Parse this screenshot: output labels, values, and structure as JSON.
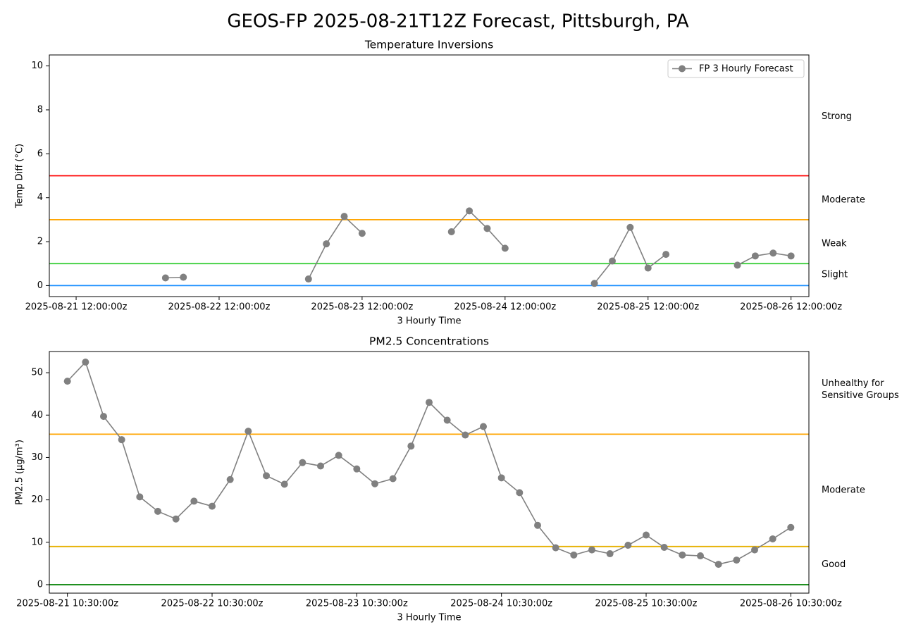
{
  "title": "GEOS-FP 2025-08-21T12Z Forecast, Pittsburgh, PA",
  "chart_data": [
    {
      "type": "line",
      "title": "Temperature Inversions",
      "xlabel": "3 Hourly Time",
      "ylabel": "Temp Diff (°C)",
      "x": [
        "2025-08-22 03:00:00z",
        "2025-08-22 06:00:00z",
        "2025-08-22 09:00:00z",
        "2025-08-23 03:00:00z",
        "2025-08-23 06:00:00z",
        "2025-08-23 09:00:00z",
        "2025-08-23 12:00:00z",
        "2025-08-23 15:00:00z",
        "2025-08-24 03:00:00z",
        "2025-08-24 06:00:00z",
        "2025-08-24 09:00:00z",
        "2025-08-24 12:00:00z",
        "2025-08-24 15:00:00z",
        "2025-08-25 03:00:00z",
        "2025-08-25 06:00:00z",
        "2025-08-25 09:00:00z",
        "2025-08-25 12:00:00z",
        "2025-08-25 15:00:00z",
        "2025-08-25 18:00:00z",
        "2025-08-26 03:00:00z",
        "2025-08-26 06:00:00z",
        "2025-08-26 09:00:00z",
        "2025-08-26 12:00:00z"
      ],
      "series": [
        {
          "name": "FP 3 Hourly Forecast",
          "color": "#808080",
          "values": [
            0.35,
            0.38,
            null,
            0.3,
            1.9,
            3.15,
            2.38,
            null,
            2.45,
            3.4,
            2.6,
            1.7,
            null,
            0.1,
            1.12,
            2.65,
            0.8,
            1.42,
            null,
            0.93,
            1.35,
            1.48,
            1.35
          ]
        }
      ],
      "xlim": [
        "2025-08-21 07:30:00z",
        "2025-08-26 15:00:00z"
      ],
      "xticks": [
        "2025-08-21 12:00:00z",
        "2025-08-22 12:00:00z",
        "2025-08-23 12:00:00z",
        "2025-08-24 12:00:00z",
        "2025-08-25 12:00:00z",
        "2025-08-26 12:00:00z"
      ],
      "ylim": [
        -0.5,
        10.5
      ],
      "yticks": [
        0,
        2,
        4,
        6,
        8,
        10
      ],
      "thresholds": [
        {
          "value": 0,
          "color": "#1e90ff"
        },
        {
          "value": 1,
          "color": "#32cd32"
        },
        {
          "value": 3,
          "color": "#ffa500"
        },
        {
          "value": 5,
          "color": "#ff0000"
        }
      ],
      "zone_labels": [
        {
          "lines": [
            "Strong"
          ],
          "color": "#ff0000",
          "y": 7.7
        },
        {
          "lines": [
            "Moderate"
          ],
          "color": "#ffa500",
          "y": 3.9
        },
        {
          "lines": [
            "Weak"
          ],
          "color": "#32cd32",
          "y": 1.9
        },
        {
          "lines": [
            "Slight"
          ],
          "color": "#1e90ff",
          "y": 0.5
        }
      ],
      "legend": "upper right"
    },
    {
      "type": "line",
      "title": "PM2.5 Concentrations",
      "xlabel": "3 Hourly Time",
      "ylabel": "PM2.5 (μg/m³)",
      "x": [
        "2025-08-21 10:30:00z",
        "2025-08-21 13:30:00z",
        "2025-08-21 16:30:00z",
        "2025-08-21 19:30:00z",
        "2025-08-21 22:30:00z",
        "2025-08-22 01:30:00z",
        "2025-08-22 04:30:00z",
        "2025-08-22 07:30:00z",
        "2025-08-22 10:30:00z",
        "2025-08-22 13:30:00z",
        "2025-08-22 16:30:00z",
        "2025-08-22 19:30:00z",
        "2025-08-22 22:30:00z",
        "2025-08-23 01:30:00z",
        "2025-08-23 04:30:00z",
        "2025-08-23 07:30:00z",
        "2025-08-23 10:30:00z",
        "2025-08-23 13:30:00z",
        "2025-08-23 16:30:00z",
        "2025-08-23 19:30:00z",
        "2025-08-23 22:30:00z",
        "2025-08-24 01:30:00z",
        "2025-08-24 04:30:00z",
        "2025-08-24 07:30:00z",
        "2025-08-24 10:30:00z",
        "2025-08-24 13:30:00z",
        "2025-08-24 16:30:00z",
        "2025-08-24 19:30:00z",
        "2025-08-24 22:30:00z",
        "2025-08-25 01:30:00z",
        "2025-08-25 04:30:00z",
        "2025-08-25 07:30:00z",
        "2025-08-25 10:30:00z",
        "2025-08-25 13:30:00z",
        "2025-08-25 16:30:00z",
        "2025-08-25 19:30:00z",
        "2025-08-25 22:30:00z",
        "2025-08-26 01:30:00z",
        "2025-08-26 04:30:00z",
        "2025-08-26 07:30:00z",
        "2025-08-26 10:30:00z"
      ],
      "series": [
        {
          "name": "FP 3 Hourly Forecast",
          "color": "#808080",
          "values": [
            48.0,
            52.5,
            39.7,
            34.2,
            20.7,
            17.3,
            15.5,
            19.7,
            18.5,
            24.8,
            36.2,
            25.7,
            23.7,
            28.8,
            28.0,
            30.5,
            27.3,
            23.8,
            25.0,
            32.7,
            43.0,
            38.8,
            35.3,
            37.3,
            25.2,
            21.7,
            14.0,
            8.7,
            7.0,
            8.2,
            7.3,
            9.3,
            11.7,
            8.8,
            7.0,
            6.8,
            4.8,
            5.8,
            8.2,
            10.8,
            13.5
          ]
        }
      ],
      "xlim": [
        "2025-08-21 07:30:00z",
        "2025-08-26 13:30:00z"
      ],
      "xticks": [
        "2025-08-21 10:30:00z",
        "2025-08-22 10:30:00z",
        "2025-08-23 10:30:00z",
        "2025-08-24 10:30:00z",
        "2025-08-25 10:30:00z",
        "2025-08-26 10:30:00z"
      ],
      "ylim": [
        -2,
        55
      ],
      "yticks": [
        0,
        10,
        20,
        30,
        40,
        50
      ],
      "thresholds": [
        {
          "value": 0,
          "color": "#008000"
        },
        {
          "value": 9.0,
          "color": "#e6b000"
        },
        {
          "value": 35.5,
          "color": "#ffa500"
        }
      ],
      "zone_labels": [
        {
          "lines": [
            "Unhealthy for",
            "Sensitive Groups"
          ],
          "color": "#ffa500",
          "y": 46
        },
        {
          "lines": [
            "Moderate"
          ],
          "color": "#e6b000",
          "y": 22.3
        },
        {
          "lines": [
            "Good"
          ],
          "color": "#008000",
          "y": 4.7
        }
      ]
    }
  ]
}
